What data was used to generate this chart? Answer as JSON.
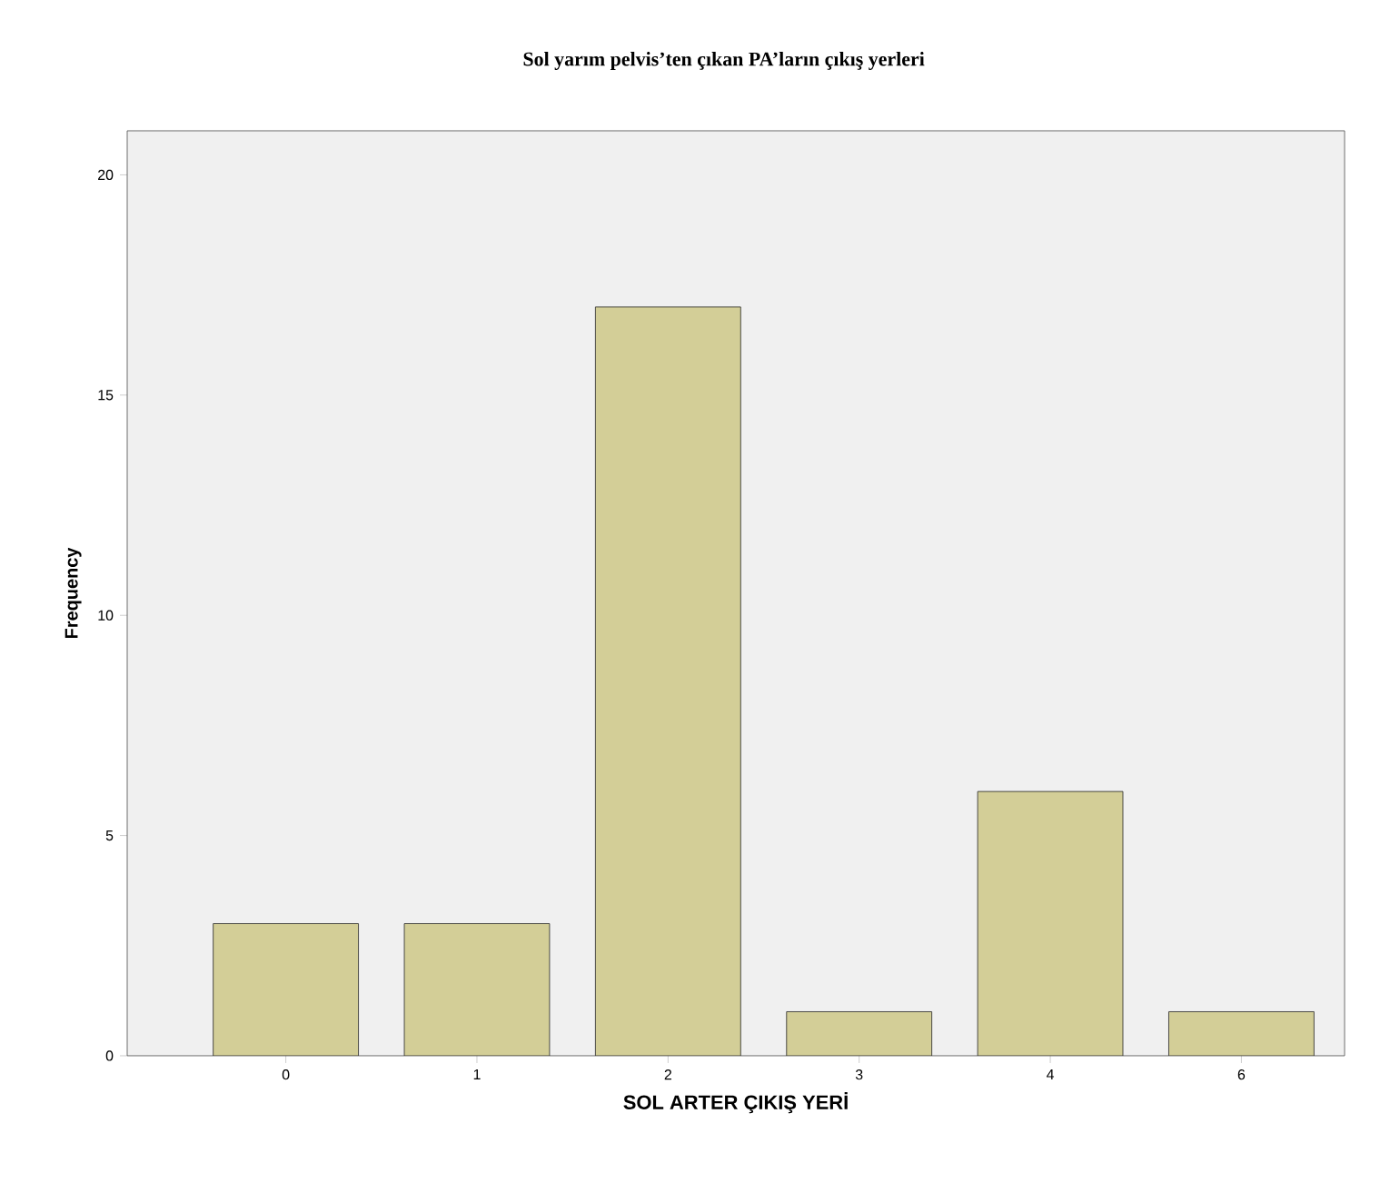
{
  "chart_data": {
    "type": "bar",
    "title": "Sol yarım pelvis’ten çıkan PA’ların çıkış yerleri",
    "xlabel": "SOL ARTER ÇIKIŞ YERİ",
    "ylabel": "Frequency",
    "categories": [
      "0",
      "1",
      "2",
      "3",
      "4",
      "6"
    ],
    "values": [
      3,
      3,
      17,
      1,
      6,
      1
    ],
    "color": "#d3ce97",
    "ylim": [
      0,
      21
    ],
    "yticks": [
      0,
      5,
      10,
      15,
      20
    ]
  }
}
